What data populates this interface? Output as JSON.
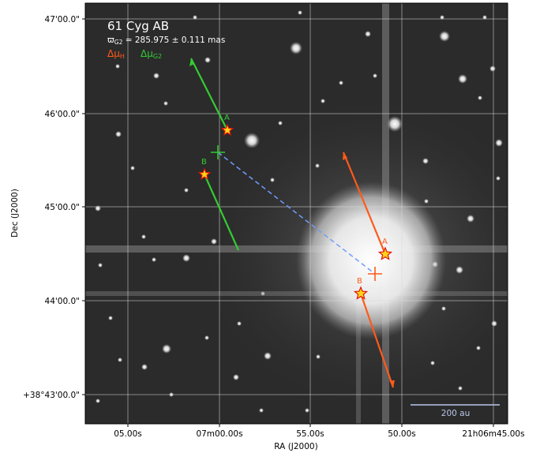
{
  "title": "61 Cyg AB",
  "parallax": {
    "symbol": "ϖ",
    "sub": "G2",
    "text": " = 285.975 ± 0.111 mas"
  },
  "legend": {
    "hipparcos": {
      "symbol": "Δμ",
      "sub": "H",
      "color": "#ff5a1a"
    },
    "gaia": {
      "symbol": "Δμ",
      "sub": "G2",
      "color": "#33cc33"
    }
  },
  "stars": {
    "green": {
      "A": "A",
      "B": "B"
    },
    "orange": {
      "A": "A",
      "B": "B"
    }
  },
  "scale_bar": {
    "label": "200 au",
    "color": "#b9c8ea"
  },
  "axes": {
    "xlabel": "RA (J2000)",
    "ylabel": "Dec (J2000)",
    "x_ticks": [
      "05.00s",
      "07m00.00s",
      "55.00s",
      "50.00s",
      "21h06m45.00s"
    ],
    "y_ticks": [
      "47'00.0\"",
      "46'00.0\"",
      "45'00.0\"",
      "44'00.0\"",
      "+38°43'00.0\""
    ]
  },
  "colors": {
    "orange": "#ff5a1a",
    "green": "#33cc33",
    "link": "#6f9cff",
    "star_fill": "#ffd21a"
  }
}
